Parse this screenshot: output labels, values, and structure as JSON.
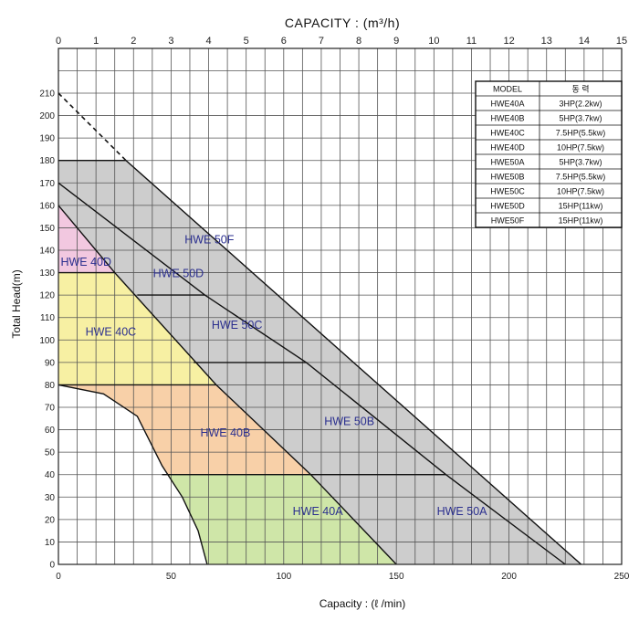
{
  "chart_data": {
    "type": "area",
    "title": "CAPACITY : (m³/h)",
    "xlabel": "Capacity : (ℓ /min)",
    "ylabel": "Total Head(m)",
    "x_bottom": {
      "min": 0,
      "max": 250,
      "ticks": [
        "0",
        "50",
        "100",
        "150",
        "200",
        "250"
      ]
    },
    "x_top": {
      "min": 0,
      "max": 15,
      "ticks": [
        "0",
        "1",
        "2",
        "3",
        "4",
        "5",
        "6",
        "7",
        "8",
        "9",
        "10",
        "11",
        "12",
        "13",
        "14",
        "15"
      ]
    },
    "y": {
      "min": 0,
      "max": 210,
      "ticks": [
        "0",
        "10",
        "20",
        "30",
        "40",
        "50",
        "60",
        "70",
        "80",
        "90",
        "100",
        "110",
        "120",
        "130",
        "140",
        "150",
        "160",
        "170",
        "180",
        "190",
        "200",
        "210"
      ]
    },
    "grid": true,
    "regions": [
      {
        "name": "HWE 50A",
        "color": "#d4f1fb",
        "label_at": [
          168,
          22
        ],
        "points": [
          [
            0,
            0
          ],
          [
            0,
            40
          ],
          [
            172,
            40
          ],
          [
            225,
            0
          ]
        ]
      },
      {
        "name": "HWE 50B",
        "color": "#b9d8f3",
        "label_at": [
          118,
          62
        ],
        "points": [
          [
            0,
            40
          ],
          [
            0,
            90
          ],
          [
            110,
            90
          ],
          [
            172,
            40
          ]
        ]
      },
      {
        "name": "HWE 50C",
        "color": "#d9d9f3",
        "label_at": [
          68,
          105
        ],
        "points": [
          [
            0,
            90
          ],
          [
            0,
            120
          ],
          [
            65,
            120
          ],
          [
            110,
            90
          ]
        ]
      },
      {
        "name": "HWE 50D",
        "color": "#a9e6e8",
        "label_at": [
          42,
          128
        ],
        "points": [
          [
            0,
            120
          ],
          [
            0,
            170
          ],
          [
            65,
            120
          ]
        ]
      },
      {
        "name": "HWE 50F",
        "color": "#cdcdcd",
        "label_at": [
          56,
          143
        ],
        "points": [
          [
            0,
            0
          ],
          [
            0,
            180
          ],
          [
            30,
            180
          ],
          [
            232,
            0
          ]
        ]
      },
      {
        "name": "HWE 40A",
        "color": "#cfe6a8",
        "label_at": [
          104,
          22
        ],
        "points": [
          [
            0,
            0
          ],
          [
            0,
            40
          ],
          [
            112,
            40
          ],
          [
            150,
            0
          ]
        ]
      },
      {
        "name": "HWE 40B",
        "color": "#f8d0a8",
        "label_at": [
          63,
          57
        ],
        "points": [
          [
            0,
            40
          ],
          [
            0,
            80
          ],
          [
            70,
            80
          ],
          [
            112,
            40
          ]
        ]
      },
      {
        "name": "HWE 40C",
        "color": "#f7f0a3",
        "label_at": [
          12,
          102
        ],
        "points": [
          [
            0,
            80
          ],
          [
            0,
            130
          ],
          [
            25,
            130
          ],
          [
            70,
            80
          ]
        ]
      },
      {
        "name": "HWE 40D",
        "color": "#f2c8e0",
        "label_at": [
          1,
          133
        ],
        "points": [
          [
            0,
            130
          ],
          [
            0,
            160
          ],
          [
            25,
            130
          ]
        ]
      }
    ],
    "white_mask": [
      [
        0,
        0
      ],
      [
        0,
        80
      ],
      [
        20,
        76
      ],
      [
        35,
        66
      ],
      [
        46,
        44
      ],
      [
        55,
        30
      ],
      [
        62,
        15
      ],
      [
        66,
        0
      ]
    ],
    "dashed_extension": [
      [
        0,
        210
      ],
      [
        30,
        180
      ]
    ]
  },
  "table": {
    "headers": [
      "MODEL",
      "동  력"
    ],
    "rows": [
      [
        "HWE40A",
        "3HP(2.2kw)"
      ],
      [
        "HWE40B",
        "5HP(3.7kw)"
      ],
      [
        "HWE40C",
        "7.5HP(5.5kw)"
      ],
      [
        "HWE40D",
        "10HP(7.5kw)"
      ],
      [
        "HWE50A",
        "5HP(3.7kw)"
      ],
      [
        "HWE50B",
        "7.5HP(5.5kw)"
      ],
      [
        "HWE50C",
        "10HP(7.5kw)"
      ],
      [
        "HWE50D",
        "15HP(11kw)"
      ],
      [
        "HWE50F",
        "15HP(11kw)"
      ]
    ]
  }
}
